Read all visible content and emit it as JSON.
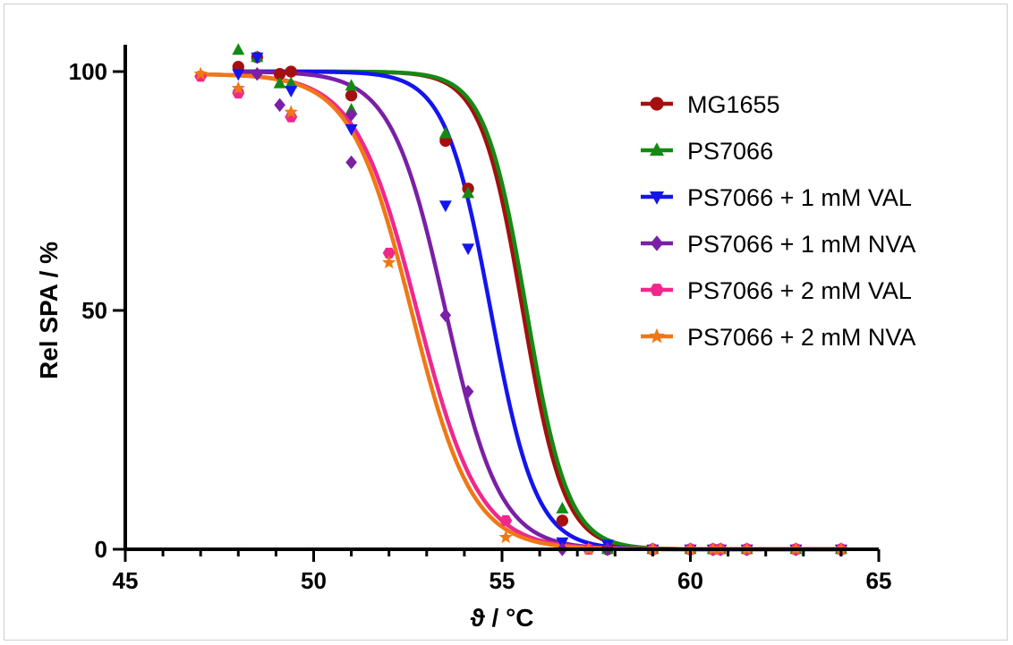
{
  "chart_data": {
    "type": "scatter",
    "title": "",
    "xlabel": "ϑ / °C",
    "ylabel": "Rel SPA / %",
    "xlim": [
      45,
      65
    ],
    "ylim": [
      0,
      100
    ],
    "x_major_ticks": [
      45,
      50,
      55,
      60,
      65
    ],
    "x_tick_labels": [
      "45",
      "50",
      "55",
      "60",
      "65"
    ],
    "y_major_ticks": [
      0,
      50,
      100
    ],
    "y_tick_labels": [
      "0",
      "50",
      "100"
    ],
    "grid": false,
    "legend_position": "top-right",
    "series": [
      {
        "name": "MG1655",
        "color": "#a50f0f",
        "marker": "circle",
        "points": [
          [
            48,
            101
          ],
          [
            48.5,
            103
          ],
          [
            49.1,
            99.5
          ],
          [
            49.4,
            100
          ],
          [
            51,
            95
          ],
          [
            53.5,
            85.5
          ],
          [
            54.1,
            75.5
          ],
          [
            56.6,
            6
          ],
          [
            57.8,
            0
          ],
          [
            59,
            0
          ],
          [
            60,
            0
          ],
          [
            60.6,
            0
          ],
          [
            60.8,
            0
          ],
          [
            61.5,
            0
          ],
          [
            62.8,
            0
          ],
          [
            64,
            0
          ]
        ],
        "fit": {
          "top": 100,
          "bottom": 0,
          "tm": 55.55,
          "slope": 0.55
        }
      },
      {
        "name": "PS7066",
        "color": "#148a14",
        "marker": "triangle-up",
        "points": [
          [
            48,
            104.5
          ],
          [
            48.5,
            103
          ],
          [
            49.1,
            97.5
          ],
          [
            49.4,
            97.5
          ],
          [
            51,
            92
          ],
          [
            51,
            97
          ],
          [
            53.5,
            87
          ],
          [
            54.1,
            74.5
          ],
          [
            56.6,
            8.5
          ],
          [
            57.8,
            0
          ],
          [
            59,
            0
          ],
          [
            60,
            0
          ],
          [
            60.6,
            0
          ],
          [
            60.8,
            0
          ],
          [
            61.5,
            0
          ],
          [
            62.8,
            0
          ],
          [
            64,
            0
          ]
        ],
        "fit": {
          "top": 100,
          "bottom": 0,
          "tm": 55.65,
          "slope": 0.55
        }
      },
      {
        "name": "PS7066 + 1 mM VAL",
        "color": "#1414f0",
        "marker": "triangle-down",
        "points": [
          [
            48,
            99.5
          ],
          [
            48.5,
            103
          ],
          [
            49.4,
            96
          ],
          [
            51,
            88
          ],
          [
            53.5,
            72
          ],
          [
            54.1,
            63
          ],
          [
            56.6,
            1.5
          ],
          [
            57.8,
            1
          ],
          [
            59,
            0
          ],
          [
            60,
            0
          ],
          [
            60.6,
            0
          ],
          [
            60.8,
            0
          ],
          [
            61.5,
            0
          ],
          [
            62.8,
            0
          ],
          [
            64,
            0
          ]
        ],
        "fit": {
          "top": 100,
          "bottom": 0,
          "tm": 54.7,
          "slope": 0.6
        }
      },
      {
        "name": "PS7066 + 1 mM NVA",
        "color": "#7a1fa6",
        "marker": "diamond",
        "points": [
          [
            48,
            96
          ],
          [
            48.5,
            99.5
          ],
          [
            49.1,
            93
          ],
          [
            51,
            81
          ],
          [
            51,
            91
          ],
          [
            53.5,
            49
          ],
          [
            54.1,
            33
          ],
          [
            56.6,
            0
          ],
          [
            57.8,
            0
          ],
          [
            59,
            0
          ],
          [
            60,
            0
          ],
          [
            60.6,
            0
          ],
          [
            60.8,
            0
          ],
          [
            61.5,
            0
          ],
          [
            62.8,
            0
          ],
          [
            64,
            0
          ]
        ],
        "fit": {
          "top": 100,
          "bottom": 0,
          "tm": 53.5,
          "slope": 0.72
        }
      },
      {
        "name": "PS7066 + 2 mM VAL",
        "color": "#f0288c",
        "marker": "hexagon",
        "points": [
          [
            47,
            99
          ],
          [
            48,
            95.5
          ],
          [
            49.4,
            90.5
          ],
          [
            52,
            62
          ],
          [
            55.1,
            6
          ],
          [
            57.3,
            0
          ],
          [
            59,
            0
          ],
          [
            60,
            0
          ],
          [
            60.6,
            0
          ],
          [
            60.8,
            0
          ],
          [
            61.5,
            0
          ],
          [
            62.8,
            0
          ],
          [
            64,
            0
          ]
        ],
        "fit": {
          "top": 99.5,
          "bottom": 0,
          "tm": 52.75,
          "slope": 0.82
        }
      },
      {
        "name": "PS7066 + 2 mM NVA",
        "color": "#f07814",
        "marker": "star",
        "points": [
          [
            47,
            99.5
          ],
          [
            48,
            96.5
          ],
          [
            49.4,
            91.5
          ],
          [
            52,
            60
          ],
          [
            55.1,
            2.5
          ],
          [
            57.3,
            0
          ],
          [
            59,
            0
          ],
          [
            60,
            0
          ],
          [
            60.6,
            0
          ],
          [
            60.8,
            0
          ],
          [
            61.5,
            0
          ],
          [
            62.8,
            0
          ],
          [
            64,
            0
          ]
        ],
        "fit": {
          "top": 99.5,
          "bottom": 0,
          "tm": 52.6,
          "slope": 0.8
        }
      }
    ]
  }
}
